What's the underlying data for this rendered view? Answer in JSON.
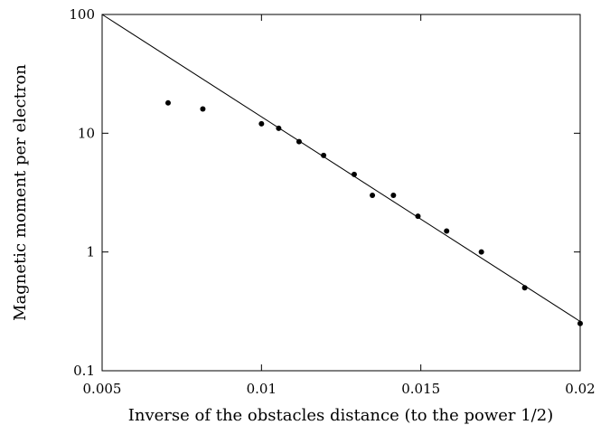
{
  "chart_data": {
    "type": "scatter",
    "title": "",
    "xlabel": "Inverse of the obstacles distance (to the power 1/2)",
    "ylabel": "Magnetic moment per electron",
    "xlim": [
      0.005,
      0.02
    ],
    "ylim": [
      0.1,
      100
    ],
    "yscale": "log",
    "grid": false,
    "xticks": [
      {
        "value": 0.005,
        "label": "0.005"
      },
      {
        "value": 0.01,
        "label": "0.01"
      },
      {
        "value": 0.015,
        "label": "0.015"
      },
      {
        "value": 0.02,
        "label": "0.02"
      }
    ],
    "yticks": [
      {
        "value": 0.1,
        "label": "0.1"
      },
      {
        "value": 1,
        "label": "1"
      },
      {
        "value": 10,
        "label": "10"
      },
      {
        "value": 100,
        "label": "100"
      }
    ],
    "series": [
      {
        "type": "scatter",
        "color": "#000000",
        "points": [
          {
            "x": 0.00707,
            "y": 18
          },
          {
            "x": 0.00816,
            "y": 16
          },
          {
            "x": 0.01,
            "y": 12
          },
          {
            "x": 0.01054,
            "y": 11
          },
          {
            "x": 0.01118,
            "y": 8.5
          },
          {
            "x": 0.01195,
            "y": 6.5
          },
          {
            "x": 0.01291,
            "y": 4.5
          },
          {
            "x": 0.01348,
            "y": 3.0
          },
          {
            "x": 0.01414,
            "y": 3.0
          },
          {
            "x": 0.01491,
            "y": 2.0
          },
          {
            "x": 0.01581,
            "y": 1.5
          },
          {
            "x": 0.0169,
            "y": 1.0
          },
          {
            "x": 0.01826,
            "y": 0.5
          },
          {
            "x": 0.02,
            "y": 0.25
          }
        ]
      },
      {
        "type": "line",
        "color": "#000000",
        "points": [
          {
            "x": 0.005,
            "y": 100
          },
          {
            "x": 0.02,
            "y": 0.26
          }
        ]
      }
    ]
  }
}
